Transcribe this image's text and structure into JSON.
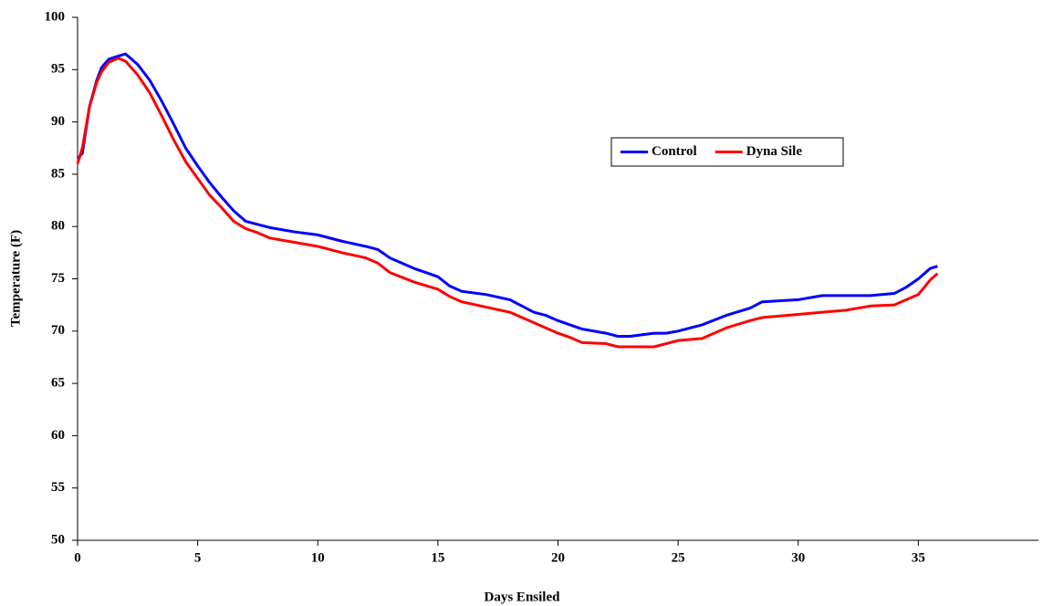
{
  "chart_data": {
    "type": "line",
    "x_label": "Days Ensiled",
    "y_label": "Temperature (F)",
    "x": [
      0,
      0.2,
      0.5,
      0.8,
      1,
      1.3,
      1.7,
      2,
      2.5,
      3,
      3.5,
      4,
      4.5,
      5,
      5.5,
      6,
      6.5,
      7,
      7.5,
      8,
      9,
      10,
      11,
      12,
      12.5,
      13,
      14,
      15,
      15.5,
      16,
      17,
      18,
      19,
      19.5,
      20,
      20.5,
      21,
      22,
      22.5,
      23,
      24,
      24.5,
      25,
      26,
      27,
      28,
      28.5,
      30,
      31,
      32,
      33,
      34,
      34.5,
      35,
      35.5,
      35.8
    ],
    "series": [
      {
        "name": "Control",
        "color": "#0000ff",
        "values": [
          86.5,
          87,
          91.5,
          94,
          95.2,
          96,
          96.3,
          96.5,
          95.5,
          94,
          92,
          89.8,
          87.5,
          85.8,
          84.2,
          82.8,
          81.5,
          80.5,
          80.2,
          79.9,
          79.5,
          79.2,
          78.6,
          78.1,
          77.8,
          77,
          76,
          75.2,
          74.3,
          73.8,
          73.5,
          73,
          71.8,
          71.5,
          71,
          70.6,
          70.2,
          69.8,
          69.5,
          69.5,
          69.8,
          69.8,
          70,
          70.6,
          71.5,
          72.2,
          72.8,
          73,
          73.4,
          73.4,
          73.4,
          73.6,
          74.2,
          75,
          76,
          76.2
        ]
      },
      {
        "name": "Dyna Sile",
        "color": "#ff0000",
        "values": [
          86,
          87.5,
          91.5,
          93.8,
          94.8,
          95.7,
          96.1,
          95.8,
          94.5,
          92.8,
          90.6,
          88.3,
          86.2,
          84.6,
          83,
          81.8,
          80.5,
          79.8,
          79.4,
          78.9,
          78.5,
          78.1,
          77.5,
          77,
          76.5,
          75.6,
          74.7,
          74,
          73.3,
          72.8,
          72.3,
          71.8,
          70.8,
          70.3,
          69.8,
          69.4,
          68.9,
          68.8,
          68.5,
          68.5,
          68.5,
          68.8,
          69.1,
          69.3,
          70.3,
          71,
          71.3,
          71.6,
          71.8,
          72,
          72.4,
          72.5,
          73,
          73.5,
          74.9,
          75.5
        ]
      }
    ],
    "xlim": [
      0,
      40
    ],
    "xticks": [
      0,
      5,
      10,
      15,
      20,
      25,
      30,
      35
    ],
    "ylim": [
      50,
      100
    ],
    "yticks": [
      50,
      55,
      60,
      65,
      70,
      75,
      80,
      85,
      90,
      95,
      100
    ],
    "grid": false,
    "legend": "center right"
  }
}
